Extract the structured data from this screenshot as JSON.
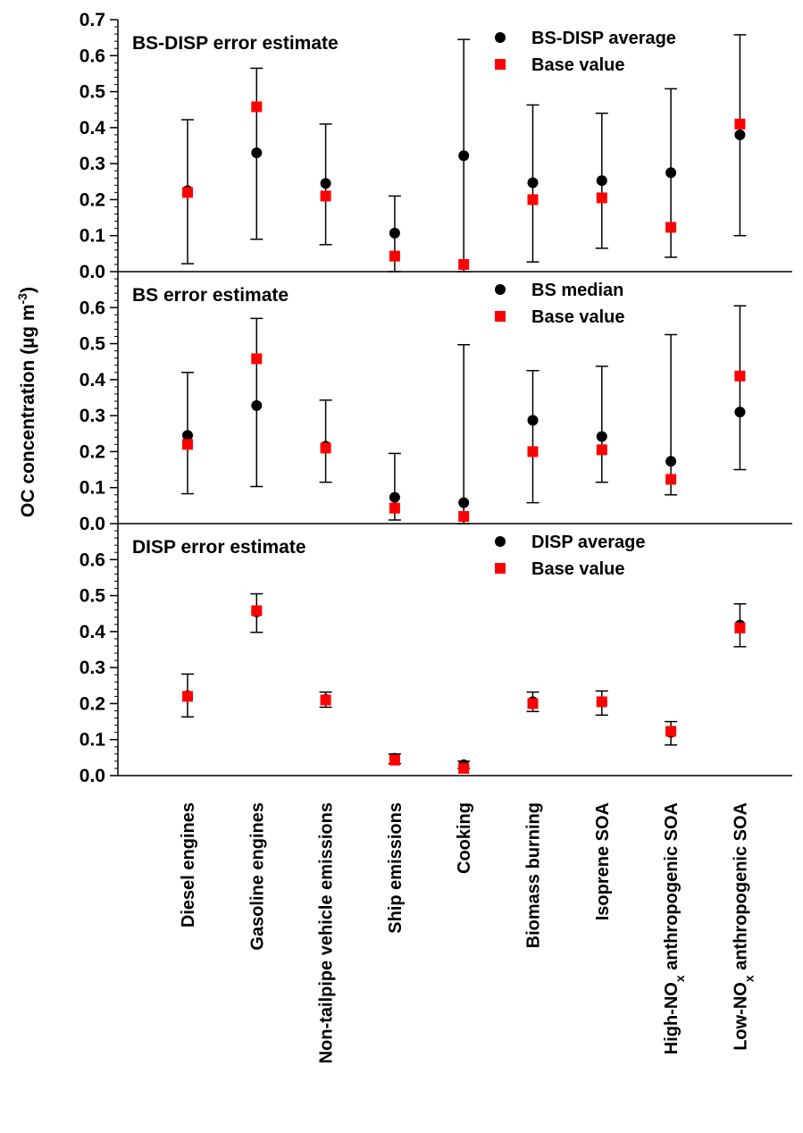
{
  "ylabel": {
    "prefix": "OC concentration (",
    "mu": "µ",
    "unit": "g m",
    "exp": "-3",
    "suffix": ")"
  },
  "colors": {
    "average": "#000000",
    "base": "#ff0000"
  },
  "chart_data": [
    {
      "type": "scatter",
      "title": "BS-DISP error estimate",
      "ylim": [
        0,
        0.7
      ],
      "yticks": [
        "0.0",
        "0.1",
        "0.2",
        "0.3",
        "0.4",
        "0.5",
        "0.6",
        "0.7"
      ],
      "legend_position": "top-right",
      "series": [
        {
          "name": "BS-DISP  average",
          "marker": "circle",
          "values": [
            0.225,
            0.33,
            0.245,
            0.107,
            0.322,
            0.247,
            0.253,
            0.275,
            0.38
          ],
          "err_low": [
            0.022,
            0.09,
            0.075,
            0.0,
            0.0,
            0.027,
            0.065,
            0.04,
            0.1
          ],
          "err_high": [
            0.422,
            0.565,
            0.41,
            0.21,
            0.645,
            0.463,
            0.44,
            0.508,
            0.658
          ]
        },
        {
          "name": "Base value",
          "marker": "square",
          "values": [
            0.22,
            0.458,
            0.21,
            0.043,
            0.02,
            0.2,
            0.205,
            0.123,
            0.41
          ]
        }
      ]
    },
    {
      "type": "scatter",
      "title": "BS error estimate",
      "ylim": [
        0,
        0.7
      ],
      "yticks": [
        "0.0",
        "0.1",
        "0.2",
        "0.3",
        "0.4",
        "0.5",
        "0.6"
      ],
      "legend_position": "top-right",
      "series": [
        {
          "name": "BS median",
          "marker": "circle",
          "values": [
            0.245,
            0.328,
            0.215,
            0.073,
            0.058,
            0.287,
            0.242,
            0.173,
            0.31
          ],
          "err_low": [
            0.083,
            0.103,
            0.115,
            0.01,
            0.0,
            0.058,
            0.115,
            0.08,
            0.15
          ],
          "err_high": [
            0.42,
            0.57,
            0.343,
            0.195,
            0.497,
            0.425,
            0.437,
            0.525,
            0.605
          ]
        },
        {
          "name": "Base value",
          "marker": "square",
          "values": [
            0.22,
            0.458,
            0.21,
            0.043,
            0.02,
            0.2,
            0.205,
            0.123,
            0.41
          ]
        }
      ]
    },
    {
      "type": "scatter",
      "title": "DISP error estimate",
      "ylim": [
        0,
        0.7
      ],
      "yticks": [
        "0.0",
        "0.1",
        "0.2",
        "0.3",
        "0.4",
        "0.5",
        "0.6"
      ],
      "legend_position": "top-right",
      "series": [
        {
          "name": "DISP average",
          "marker": "circle",
          "values": [
            0.222,
            0.455,
            0.212,
            0.048,
            0.03,
            0.205,
            0.205,
            0.12,
            0.418
          ],
          "err_low": [
            0.163,
            0.398,
            0.19,
            0.033,
            0.02,
            0.178,
            0.168,
            0.085,
            0.358
          ],
          "err_high": [
            0.282,
            0.505,
            0.232,
            0.06,
            0.04,
            0.232,
            0.235,
            0.15,
            0.477
          ]
        },
        {
          "name": "Base value",
          "marker": "square",
          "values": [
            0.22,
            0.458,
            0.21,
            0.043,
            0.02,
            0.2,
            0.205,
            0.123,
            0.41
          ]
        }
      ]
    }
  ],
  "categories": [
    {
      "text": "Diesel engines"
    },
    {
      "text": "Gasoline engines"
    },
    {
      "text": "Non-tailpipe vehicle emissions"
    },
    {
      "text": "Ship emissions"
    },
    {
      "text": "Cooking"
    },
    {
      "text": "Biomass burning"
    },
    {
      "text": "Isoprene SOA"
    },
    {
      "text": "High-NO",
      "sub": "x",
      "rest": " anthropogenic SOA"
    },
    {
      "text": "Low-NO",
      "sub": "x",
      "rest": " anthropogenic SOA"
    }
  ]
}
